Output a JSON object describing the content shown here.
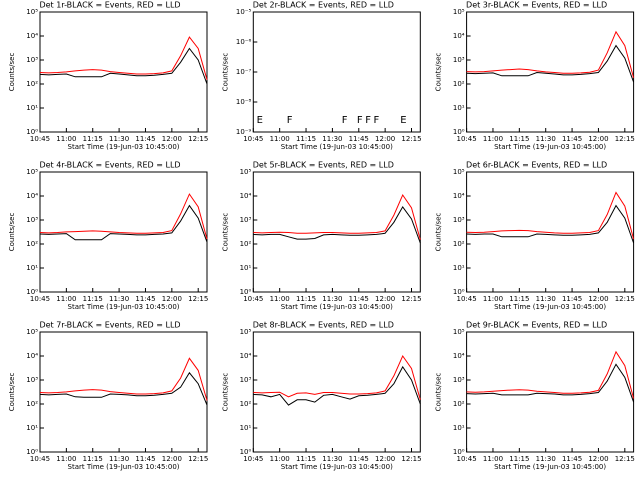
{
  "chart_data": [
    {
      "type": "line",
      "title": "Det 1r-BLACK = Events, RED = LLD",
      "xlabel": "Start Time (19-Jun-03 10:45:00)",
      "ylabel": "Counts/sec",
      "log_y": true,
      "categories": [
        "10:45",
        null,
        null,
        "11:00",
        null,
        null,
        "11:15",
        null,
        null,
        "11:30",
        null,
        null,
        "11:45",
        null,
        null,
        "12:00",
        null,
        null,
        "12:15",
        null
      ],
      "ylim": [
        1,
        100000
      ],
      "yticks": [
        {
          "value": 1,
          "label": "10⁰"
        },
        {
          "value": 10,
          "label": "10¹"
        },
        {
          "value": 100,
          "label": "10²"
        },
        {
          "value": 1000,
          "label": "10³"
        },
        {
          "value": 10000,
          "label": "10⁴"
        },
        {
          "value": 100000,
          "label": "10⁵"
        }
      ],
      "series": [
        {
          "name": "Events",
          "color": "#000000",
          "values": [
            250,
            240,
            250,
            260,
            200,
            200,
            200,
            200,
            280,
            260,
            240,
            220,
            220,
            230,
            250,
            280,
            800,
            3000,
            1000,
            100
          ]
        },
        {
          "name": "LLD",
          "color": "#ff0000",
          "values": [
            300,
            290,
            300,
            320,
            350,
            380,
            400,
            380,
            330,
            300,
            280,
            260,
            260,
            270,
            290,
            350,
            1500,
            9000,
            3000,
            150
          ]
        }
      ]
    },
    {
      "type": "line",
      "title": "Det 2r-BLACK = Events, RED = LLD",
      "xlabel": "Start Time (19-Jun-03 10:45:00)",
      "ylabel": "Counts/sec",
      "log_y": true,
      "categories": [
        "10:45",
        null,
        null,
        "11:00",
        null,
        null,
        "11:15",
        null,
        null,
        "11:30",
        null,
        null,
        "11:45",
        null,
        null,
        "12:00",
        null,
        null,
        "12:15",
        null
      ],
      "ylim": [
        1e-09,
        1e-05
      ],
      "yticks": [
        {
          "value": 1e-09,
          "label": "10⁻⁹"
        },
        {
          "value": 1e-08,
          "label": "10⁻⁸"
        },
        {
          "value": 1e-07,
          "label": "10⁻⁷"
        },
        {
          "value": 1e-06,
          "label": "10⁻⁶"
        },
        {
          "value": 1e-05,
          "label": "10⁻⁵"
        }
      ],
      "annotations": [
        "E",
        "F",
        "F",
        "F",
        "F",
        "F",
        "E"
      ],
      "series": []
    },
    {
      "type": "line",
      "title": "Det 3r-BLACK = Events, RED = LLD",
      "xlabel": "Start Time (19-Jun-03 10:45:00)",
      "ylabel": "Counts/sec",
      "log_y": true,
      "categories": [
        "10:45",
        null,
        null,
        "11:00",
        null,
        null,
        "11:15",
        null,
        null,
        "11:30",
        null,
        null,
        "11:45",
        null,
        null,
        "12:00",
        null,
        null,
        "12:15",
        null
      ],
      "ylim": [
        1,
        100000
      ],
      "yticks": [
        {
          "value": 1,
          "label": "10⁰"
        },
        {
          "value": 10,
          "label": "10¹"
        },
        {
          "value": 100,
          "label": "10²"
        },
        {
          "value": 1000,
          "label": "10³"
        },
        {
          "value": 10000,
          "label": "10⁴"
        },
        {
          "value": 100000,
          "label": "10⁵"
        }
      ],
      "series": [
        {
          "name": "Events",
          "color": "#000000",
          "values": [
            280,
            270,
            280,
            290,
            220,
            220,
            220,
            220,
            300,
            280,
            260,
            240,
            240,
            250,
            270,
            300,
            900,
            4000,
            1200,
            120
          ]
        },
        {
          "name": "LLD",
          "color": "#ff0000",
          "values": [
            330,
            320,
            330,
            350,
            380,
            400,
            420,
            400,
            350,
            320,
            300,
            280,
            280,
            290,
            310,
            380,
            2000,
            15000,
            4000,
            180
          ]
        }
      ]
    },
    {
      "type": "line",
      "title": "Det 4r-BLACK = Events, RED = LLD",
      "xlabel": "Start Time (19-Jun-03 10:45:00)",
      "ylabel": "Counts/sec",
      "log_y": true,
      "categories": [
        "10:45",
        null,
        null,
        "11:00",
        null,
        null,
        "11:15",
        null,
        null,
        "11:30",
        null,
        null,
        "11:45",
        null,
        null,
        "12:00",
        null,
        null,
        "12:15",
        null
      ],
      "ylim": [
        1,
        100000
      ],
      "yticks": [
        {
          "value": 1,
          "label": "10⁰"
        },
        {
          "value": 10,
          "label": "10¹"
        },
        {
          "value": 100,
          "label": "10²"
        },
        {
          "value": 1000,
          "label": "10³"
        },
        {
          "value": 10000,
          "label": "10⁴"
        },
        {
          "value": 100000,
          "label": "10⁵"
        }
      ],
      "series": [
        {
          "name": "Events",
          "color": "#000000",
          "values": [
            260,
            250,
            260,
            270,
            150,
            150,
            150,
            150,
            270,
            260,
            250,
            240,
            240,
            250,
            260,
            290,
            900,
            4000,
            1200,
            120
          ]
        },
        {
          "name": "LLD",
          "color": "#ff0000",
          "values": [
            300,
            290,
            300,
            320,
            330,
            340,
            350,
            340,
            320,
            300,
            290,
            280,
            280,
            290,
            300,
            360,
            1800,
            12000,
            3500,
            160
          ]
        }
      ]
    },
    {
      "type": "line",
      "title": "Det 5r-BLACK = Events, RED = LLD",
      "xlabel": "Start Time (19-Jun-03 10:45:00)",
      "ylabel": "Counts/sec",
      "log_y": true,
      "categories": [
        "10:45",
        null,
        null,
        "11:00",
        null,
        null,
        "11:15",
        null,
        null,
        "11:30",
        null,
        null,
        "11:45",
        null,
        null,
        "12:00",
        null,
        null,
        "12:15",
        null
      ],
      "ylim": [
        1,
        100000
      ],
      "yticks": [
        {
          "value": 1,
          "label": "10⁰"
        },
        {
          "value": 10,
          "label": "10¹"
        },
        {
          "value": 100,
          "label": "10²"
        },
        {
          "value": 1000,
          "label": "10³"
        },
        {
          "value": 10000,
          "label": "10⁴"
        },
        {
          "value": 100000,
          "label": "10⁵"
        }
      ],
      "series": [
        {
          "name": "Events",
          "color": "#000000",
          "values": [
            250,
            240,
            250,
            250,
            200,
            160,
            160,
            170,
            240,
            250,
            240,
            230,
            230,
            240,
            250,
            280,
            800,
            3500,
            1100,
            110
          ]
        },
        {
          "name": "LLD",
          "color": "#ff0000",
          "values": [
            300,
            290,
            300,
            310,
            300,
            280,
            280,
            290,
            300,
            300,
            290,
            280,
            280,
            290,
            300,
            350,
            1600,
            11000,
            3200,
            150
          ]
        }
      ]
    },
    {
      "type": "line",
      "title": "Det 6r-BLACK = Events, RED = LLD",
      "xlabel": "Start Time (19-Jun-03 10:45:00)",
      "ylabel": "Counts/sec",
      "log_y": true,
      "categories": [
        "10:45",
        null,
        null,
        "11:00",
        null,
        null,
        "11:15",
        null,
        null,
        "11:30",
        null,
        null,
        "11:45",
        null,
        null,
        "12:00",
        null,
        null,
        "12:15",
        null
      ],
      "ylim": [
        1,
        100000
      ],
      "yticks": [
        {
          "value": 1,
          "label": "10⁰"
        },
        {
          "value": 10,
          "label": "10¹"
        },
        {
          "value": 100,
          "label": "10²"
        },
        {
          "value": 1000,
          "label": "10³"
        },
        {
          "value": 10000,
          "label": "10⁴"
        },
        {
          "value": 100000,
          "label": "10⁵"
        }
      ],
      "series": [
        {
          "name": "Events",
          "color": "#000000",
          "values": [
            260,
            250,
            260,
            260,
            200,
            200,
            200,
            200,
            260,
            250,
            240,
            230,
            230,
            240,
            250,
            290,
            800,
            4000,
            1200,
            110
          ]
        },
        {
          "name": "LLD",
          "color": "#ff0000",
          "values": [
            310,
            300,
            310,
            330,
            350,
            360,
            370,
            360,
            330,
            310,
            290,
            280,
            280,
            290,
            300,
            360,
            1700,
            14000,
            3800,
            160
          ]
        }
      ]
    },
    {
      "type": "line",
      "title": "Det 7r-BLACK = Events, RED = LLD",
      "xlabel": "Start Time (19-Jun-03 10:45:00)",
      "ylabel": "Counts/sec",
      "log_y": true,
      "categories": [
        "10:45",
        null,
        null,
        "11:00",
        null,
        null,
        "11:15",
        null,
        null,
        "11:30",
        null,
        null,
        "11:45",
        null,
        null,
        "12:00",
        null,
        null,
        "12:15",
        null
      ],
      "ylim": [
        1,
        100000
      ],
      "yticks": [
        {
          "value": 1,
          "label": "10⁰"
        },
        {
          "value": 10,
          "label": "10¹"
        },
        {
          "value": 100,
          "label": "10²"
        },
        {
          "value": 1000,
          "label": "10³"
        },
        {
          "value": 10000,
          "label": "10⁴"
        },
        {
          "value": 100000,
          "label": "10⁵"
        }
      ],
      "series": [
        {
          "name": "Events",
          "color": "#000000",
          "values": [
            250,
            240,
            250,
            260,
            200,
            190,
            190,
            190,
            260,
            250,
            240,
            220,
            220,
            230,
            250,
            280,
            500,
            2000,
            700,
            90
          ]
        },
        {
          "name": "LLD",
          "color": "#ff0000",
          "values": [
            300,
            290,
            300,
            320,
            350,
            380,
            400,
            380,
            330,
            300,
            280,
            260,
            260,
            270,
            290,
            350,
            1200,
            8000,
            2500,
            140
          ]
        }
      ]
    },
    {
      "type": "line",
      "title": "Det 8r-BLACK = Events, RED = LLD",
      "xlabel": "Start Time (19-Jun-03 10:45:00)",
      "ylabel": "Counts/sec",
      "log_y": true,
      "categories": [
        "10:45",
        null,
        null,
        "11:00",
        null,
        null,
        "11:15",
        null,
        null,
        "11:30",
        null,
        null,
        "11:45",
        null,
        null,
        "12:00",
        null,
        null,
        "12:15",
        null
      ],
      "ylim": [
        1,
        100000
      ],
      "yticks": [
        {
          "value": 1,
          "label": "10⁰"
        },
        {
          "value": 10,
          "label": "10¹"
        },
        {
          "value": 100,
          "label": "10²"
        },
        {
          "value": 1000,
          "label": "10³"
        },
        {
          "value": 10000,
          "label": "10⁴"
        },
        {
          "value": 100000,
          "label": "10⁵"
        }
      ],
      "series": [
        {
          "name": "Events",
          "color": "#000000",
          "values": [
            250,
            240,
            200,
            250,
            90,
            150,
            150,
            120,
            230,
            250,
            200,
            160,
            220,
            230,
            250,
            280,
            700,
            3500,
            1000,
            100
          ]
        },
        {
          "name": "LLD",
          "color": "#ff0000",
          "values": [
            300,
            290,
            300,
            310,
            200,
            280,
            290,
            250,
            300,
            300,
            280,
            260,
            260,
            270,
            290,
            350,
            1500,
            10000,
            3000,
            150
          ]
        }
      ]
    },
    {
      "type": "line",
      "title": "Det 9r-BLACK = Events, RED = LLD",
      "xlabel": "Start Time (19-Jun-03 10:45:00)",
      "ylabel": "Counts/sec",
      "log_y": true,
      "categories": [
        "10:45",
        null,
        null,
        "11:00",
        null,
        null,
        "11:15",
        null,
        null,
        "11:30",
        null,
        null,
        "11:45",
        null,
        null,
        "12:00",
        null,
        null,
        "12:15",
        null
      ],
      "ylim": [
        1,
        100000
      ],
      "yticks": [
        {
          "value": 1,
          "label": "10⁰"
        },
        {
          "value": 10,
          "label": "10¹"
        },
        {
          "value": 100,
          "label": "10²"
        },
        {
          "value": 1000,
          "label": "10³"
        },
        {
          "value": 10000,
          "label": "10⁴"
        },
        {
          "value": 100000,
          "label": "10⁵"
        }
      ],
      "series": [
        {
          "name": "Events",
          "color": "#000000",
          "values": [
            270,
            260,
            270,
            280,
            240,
            240,
            240,
            240,
            280,
            270,
            260,
            240,
            240,
            250,
            270,
            300,
            900,
            4500,
            1300,
            120
          ]
        },
        {
          "name": "LLD",
          "color": "#ff0000",
          "values": [
            320,
            310,
            320,
            340,
            360,
            380,
            390,
            380,
            340,
            320,
            300,
            280,
            280,
            290,
            310,
            370,
            1800,
            15000,
            4000,
            170
          ]
        }
      ]
    }
  ]
}
